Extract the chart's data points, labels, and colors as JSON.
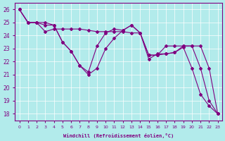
{
  "xlabel": "Windchill (Refroidissement éolien,°C)",
  "ylabel": "",
  "bg_color": "#b2ebeb",
  "line_color": "#800080",
  "grid_color": "#ffffff",
  "x_ticks": [
    0,
    1,
    2,
    3,
    4,
    5,
    6,
    7,
    8,
    9,
    10,
    11,
    12,
    13,
    14,
    15,
    16,
    17,
    18,
    19,
    20,
    21,
    22,
    23
  ],
  "ylim": [
    17.5,
    26.5
  ],
  "xlim": [
    -0.5,
    23.5
  ],
  "yticks": [
    18,
    19,
    20,
    21,
    22,
    23,
    24,
    25,
    26
  ],
  "line1": {
    "x": [
      0,
      1,
      2,
      3,
      4,
      5,
      6,
      7,
      8,
      9,
      10,
      11,
      12,
      13,
      14,
      15,
      16,
      17,
      18,
      19,
      20,
      21,
      22,
      23
    ],
    "y": [
      26,
      25,
      25,
      24.3,
      24.5,
      24.5,
      24.5,
      24.5,
      24.4,
      24.3,
      24.3,
      24.3,
      24.3,
      24.2,
      24.2,
      22.5,
      22.5,
      23.2,
      23.2,
      23.2,
      23.2,
      21.5,
      19.0,
      18.0
    ]
  },
  "line2": {
    "x": [
      0,
      1,
      2,
      3,
      4,
      5,
      6,
      7,
      8,
      9,
      10,
      11,
      12,
      13,
      14,
      15,
      16,
      17,
      18,
      19,
      20,
      21,
      22,
      23
    ],
    "y": [
      26,
      25,
      25,
      25,
      24.8,
      23.5,
      22.8,
      21.7,
      21.2,
      23.2,
      24.2,
      24.5,
      24.4,
      24.8,
      24.2,
      22.5,
      22.5,
      22.6,
      22.7,
      23.2,
      23.2,
      23.2,
      21.5,
      18.0
    ]
  },
  "line3": {
    "x": [
      0,
      1,
      2,
      3,
      4,
      5,
      6,
      7,
      8,
      9,
      10,
      11,
      12,
      13,
      14,
      15,
      16,
      17,
      18,
      19,
      20,
      21,
      22,
      23
    ],
    "y": [
      26,
      25,
      25,
      24.8,
      24.8,
      23.5,
      22.8,
      21.7,
      21.0,
      21.5,
      23.0,
      23.8,
      24.4,
      24.8,
      24.2,
      22.2,
      22.6,
      22.6,
      22.7,
      23.1,
      21.5,
      19.5,
      18.6,
      18.0
    ]
  }
}
